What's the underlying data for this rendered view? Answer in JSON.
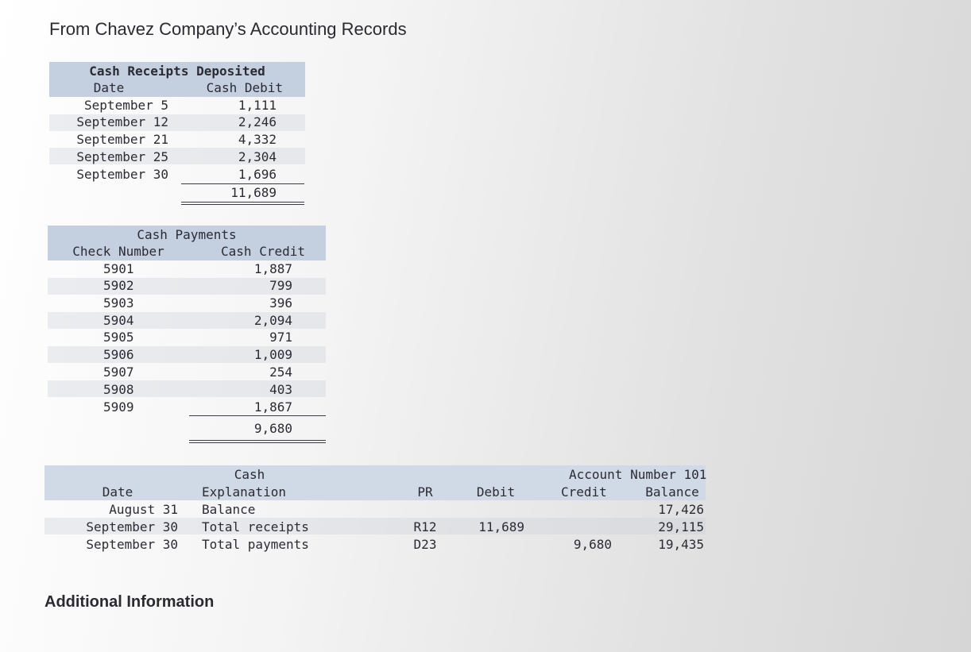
{
  "page_title": "From Chavez Company’s Accounting Records",
  "receipts": {
    "title": "Cash Receipts Deposited",
    "col_date": "Date",
    "col_amount": "Cash Debit",
    "rows": [
      {
        "date": "September 5",
        "amount": "1,111"
      },
      {
        "date": "September 12",
        "amount": "2,246"
      },
      {
        "date": "September 21",
        "amount": "4,332"
      },
      {
        "date": "September 25",
        "amount": "2,304"
      },
      {
        "date": "September 30",
        "amount": "1,696"
      }
    ],
    "total": "11,689"
  },
  "payments": {
    "title": "Cash Payments",
    "col_check": "Check Number",
    "col_amount": "Cash Credit",
    "rows": [
      {
        "check": "5901",
        "amount": "1,887"
      },
      {
        "check": "5902",
        "amount": "799"
      },
      {
        "check": "5903",
        "amount": "396"
      },
      {
        "check": "5904",
        "amount": "2,094"
      },
      {
        "check": "5905",
        "amount": "971"
      },
      {
        "check": "5906",
        "amount": "1,009"
      },
      {
        "check": "5907",
        "amount": "254"
      },
      {
        "check": "5908",
        "amount": "403"
      },
      {
        "check": "5909",
        "amount": "1,867"
      }
    ],
    "total": "9,680"
  },
  "ledger": {
    "title": "Cash",
    "account_number": "Account Number 101",
    "col_date": "Date",
    "col_explanation": "Explanation",
    "col_pr": "PR",
    "col_debit": "Debit",
    "col_credit": "Credit",
    "col_balance": "Balance",
    "rows": [
      {
        "date": "August 31",
        "explanation": "Balance",
        "pr": "",
        "debit": "",
        "credit": "",
        "balance": "17,426"
      },
      {
        "date": "September 30",
        "explanation": "Total receipts",
        "pr": "R12",
        "debit": "11,689",
        "credit": "",
        "balance": "29,115"
      },
      {
        "date": "September 30",
        "explanation": "Total payments",
        "pr": "D23",
        "debit": "",
        "credit": "9,680",
        "balance": "19,435"
      }
    ]
  },
  "additional_info": "Additional Information"
}
